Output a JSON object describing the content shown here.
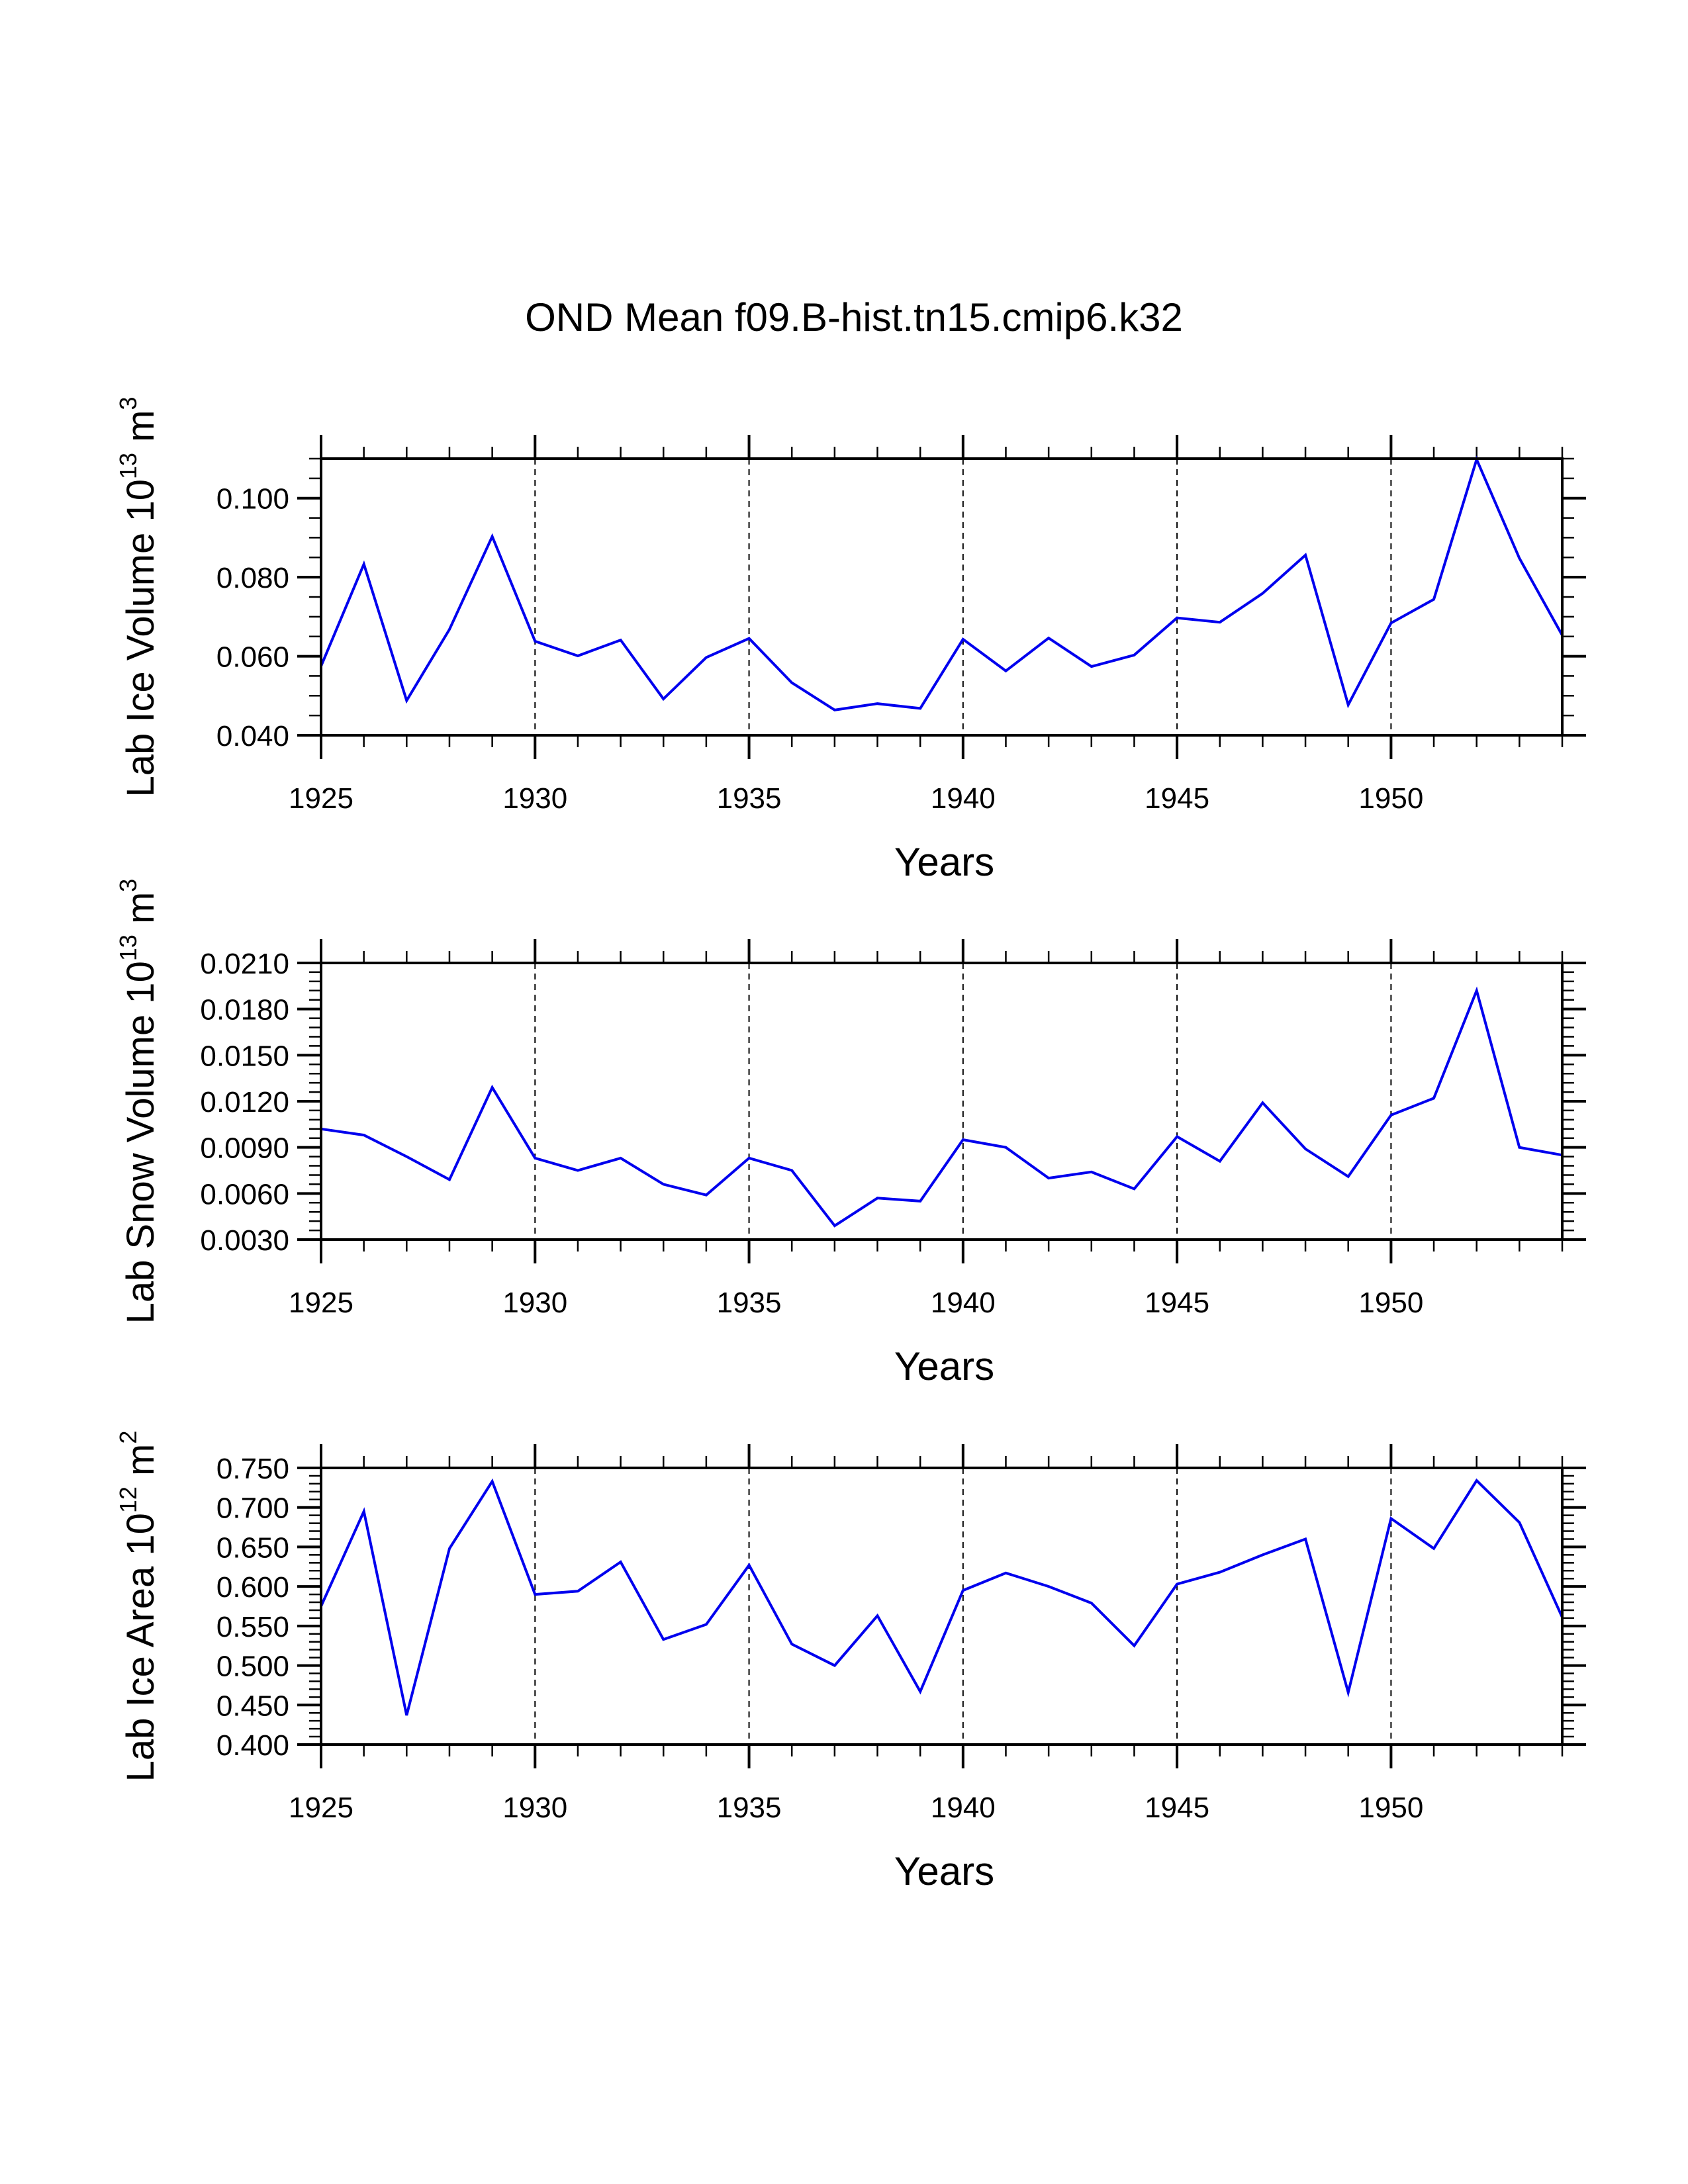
{
  "title": "OND Mean f09.B-hist.tn15.cmip6.k32",
  "chart_data": [
    {
      "type": "line",
      "ylabel_base": "Lab Ice Volume 10",
      "ylabel_exp": "13",
      "ylabel_unit_base": "m",
      "ylabel_unit_exp": "3",
      "xlabel": "Years",
      "xlim": [
        1925,
        1954
      ],
      "ylim": [
        0.04,
        0.11
      ],
      "yticks": [
        0.04,
        0.06,
        0.08,
        0.1
      ],
      "ytick_labels": [
        "0.040",
        "0.060",
        "0.080",
        "0.100"
      ],
      "yminor_step": 0.005,
      "xticks": [
        1925,
        1930,
        1935,
        1940,
        1945,
        1950
      ],
      "xtick_labels": [
        "1925",
        "1930",
        "1935",
        "1940",
        "1945",
        "1950"
      ],
      "grid_x": [
        1930,
        1935,
        1940,
        1945,
        1950
      ],
      "color": "#0000ee",
      "x": [
        1925,
        1926,
        1927,
        1928,
        1929,
        1930,
        1931,
        1932,
        1933,
        1934,
        1935,
        1936,
        1937,
        1938,
        1939,
        1940,
        1941,
        1942,
        1943,
        1944,
        1945,
        1946,
        1947,
        1948,
        1949,
        1950,
        1951,
        1952,
        1953,
        1954
      ],
      "values": [
        0.0575,
        0.0833,
        0.0488,
        0.0668,
        0.0903,
        0.0638,
        0.0601,
        0.0641,
        0.0492,
        0.0597,
        0.0645,
        0.0533,
        0.0464,
        0.048,
        0.0468,
        0.0643,
        0.0563,
        0.0646,
        0.0574,
        0.0603,
        0.0697,
        0.0686,
        0.0759,
        0.0856,
        0.0477,
        0.0684,
        0.0744,
        0.1098,
        0.0848,
        0.0653
      ]
    },
    {
      "type": "line",
      "ylabel_base": "Lab Snow Volume 10",
      "ylabel_exp": "13",
      "ylabel_unit_base": "m",
      "ylabel_unit_exp": "3",
      "xlabel": "Years",
      "xlim": [
        1925,
        1954
      ],
      "ylim": [
        0.003,
        0.021
      ],
      "yticks": [
        0.003,
        0.006,
        0.009,
        0.012,
        0.015,
        0.018,
        0.021
      ],
      "ytick_labels": [
        "0.0030",
        "0.0060",
        "0.0090",
        "0.0120",
        "0.0150",
        "0.0180",
        "0.0210"
      ],
      "yminor_step": 0.0006,
      "xticks": [
        1925,
        1930,
        1935,
        1940,
        1945,
        1950
      ],
      "xtick_labels": [
        "1925",
        "1930",
        "1935",
        "1940",
        "1945",
        "1950"
      ],
      "grid_x": [
        1930,
        1935,
        1940,
        1945,
        1950
      ],
      "color": "#0000ee",
      "x": [
        1925,
        1926,
        1927,
        1928,
        1929,
        1930,
        1931,
        1932,
        1933,
        1934,
        1935,
        1936,
        1937,
        1938,
        1939,
        1940,
        1941,
        1942,
        1943,
        1944,
        1945,
        1946,
        1947,
        1948,
        1949,
        1950,
        1951,
        1952,
        1953,
        1954
      ],
      "values": [
        0.0102,
        0.0098,
        0.0084,
        0.0069,
        0.0129,
        0.0083,
        0.0075,
        0.0083,
        0.0066,
        0.0059,
        0.0083,
        0.0075,
        0.0039,
        0.0057,
        0.0055,
        0.0095,
        0.009,
        0.007,
        0.0074,
        0.0063,
        0.0097,
        0.0081,
        0.0119,
        0.0089,
        0.0071,
        0.0111,
        0.0122,
        0.0192,
        0.009,
        0.0085
      ]
    },
    {
      "type": "line",
      "ylabel_base": "Lab Ice Area 10",
      "ylabel_exp": "12",
      "ylabel_unit_base": "m",
      "ylabel_unit_exp": "2",
      "xlabel": "Years",
      "xlim": [
        1925,
        1954
      ],
      "ylim": [
        0.4,
        0.75
      ],
      "yticks": [
        0.4,
        0.45,
        0.5,
        0.55,
        0.6,
        0.65,
        0.7,
        0.75
      ],
      "ytick_labels": [
        "0.400",
        "0.450",
        "0.500",
        "0.550",
        "0.600",
        "0.650",
        "0.700",
        "0.750"
      ],
      "yminor_step": 0.01,
      "xticks": [
        1925,
        1930,
        1935,
        1940,
        1945,
        1950
      ],
      "xtick_labels": [
        "1925",
        "1930",
        "1935",
        "1940",
        "1945",
        "1950"
      ],
      "grid_x": [
        1930,
        1935,
        1940,
        1945,
        1950
      ],
      "color": "#0000ee",
      "x": [
        1925,
        1926,
        1927,
        1928,
        1929,
        1930,
        1931,
        1932,
        1933,
        1934,
        1935,
        1936,
        1937,
        1938,
        1939,
        1940,
        1941,
        1942,
        1943,
        1944,
        1945,
        1946,
        1947,
        1948,
        1949,
        1950,
        1951,
        1952,
        1953,
        1954
      ],
      "values": [
        0.575,
        0.695,
        0.437,
        0.648,
        0.733,
        0.59,
        0.594,
        0.631,
        0.533,
        0.552,
        0.627,
        0.527,
        0.5,
        0.563,
        0.467,
        0.595,
        0.617,
        0.6,
        0.579,
        0.525,
        0.603,
        0.618,
        0.64,
        0.66,
        0.466,
        0.686,
        0.648,
        0.734,
        0.681,
        0.561
      ]
    }
  ]
}
